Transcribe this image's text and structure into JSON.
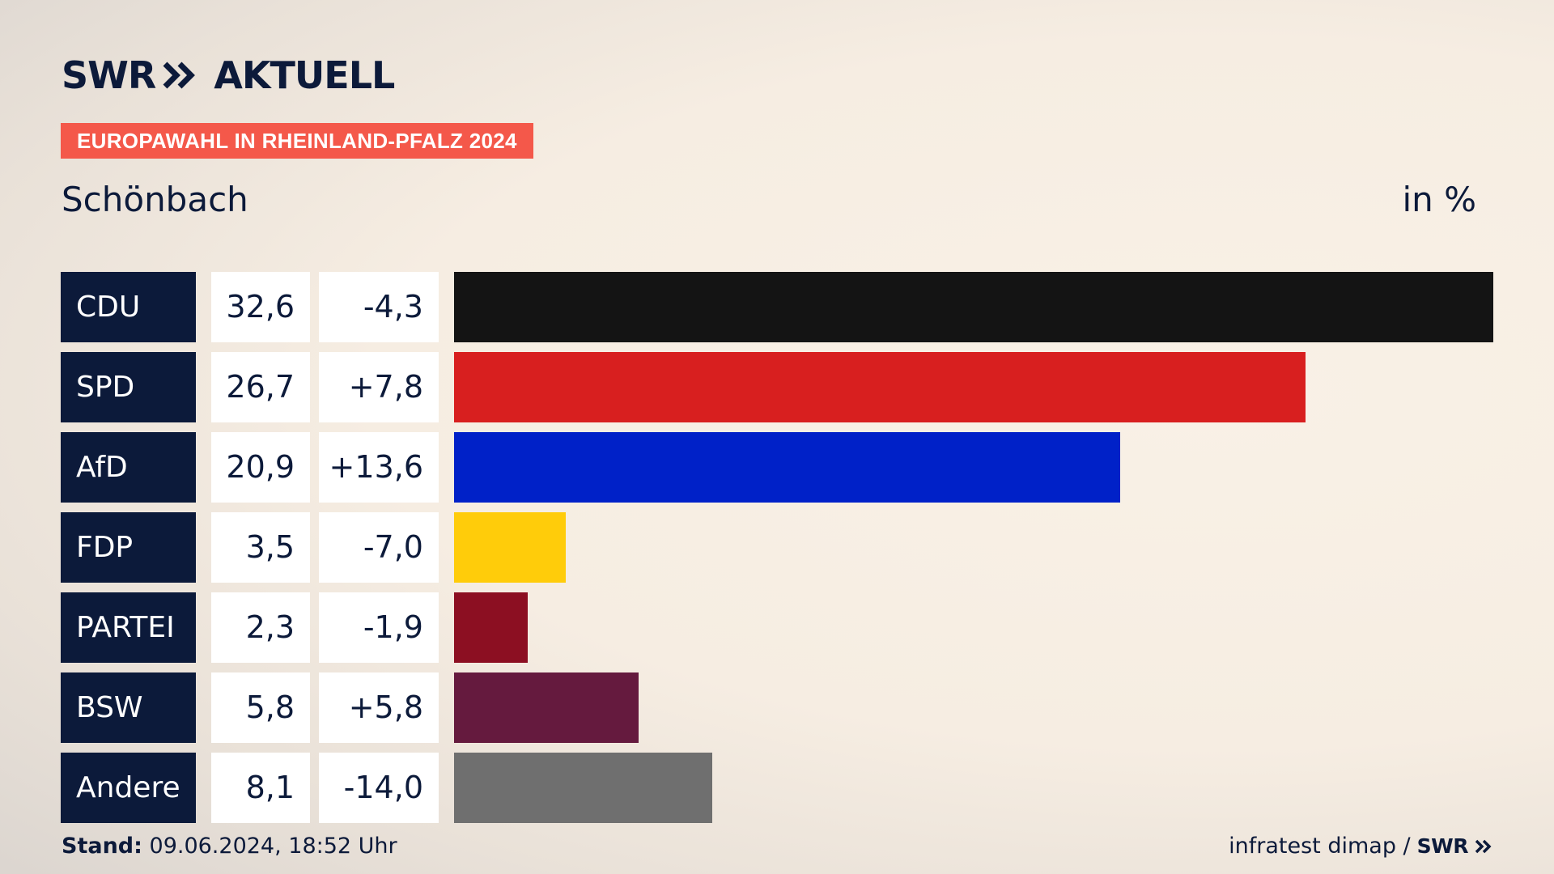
{
  "brand": {
    "logo_left": "SWR",
    "logo_right": "AKTUELL"
  },
  "badge": "EUROPAWAHL IN RHEINLAND-PFALZ 2024",
  "location": "Schönbach",
  "unit": "in %",
  "chart_data": {
    "type": "bar",
    "orientation": "horizontal",
    "categories": [
      "CDU",
      "SPD",
      "AfD",
      "FDP",
      "PARTEI",
      "BSW",
      "Andere"
    ],
    "values": [
      32.6,
      26.7,
      20.9,
      3.5,
      2.3,
      5.8,
      8.1
    ],
    "changes": [
      -4.3,
      7.8,
      13.6,
      -7.0,
      -1.9,
      5.8,
      -14.0
    ],
    "values_text": [
      "32,6",
      "26,7",
      "20,9",
      "3,5",
      "2,3",
      "5,8",
      "8,1"
    ],
    "changes_text": [
      "-4,3",
      "+7,8",
      "+13,6",
      "-7,0",
      "-1,9",
      "+5,8",
      "-14,0"
    ],
    "colors": [
      "#141414",
      "#d81f1f",
      "#0021c8",
      "#ffcc0a",
      "#8c0f22",
      "#651a3e",
      "#6f6f6f"
    ],
    "xlim": [
      0,
      32.6
    ]
  },
  "footer": {
    "stand_label": "Stand:",
    "stand_value": "09.06.2024, 18:52 Uhr",
    "source": "infratest dimap /",
    "source_brand": "SWR"
  }
}
